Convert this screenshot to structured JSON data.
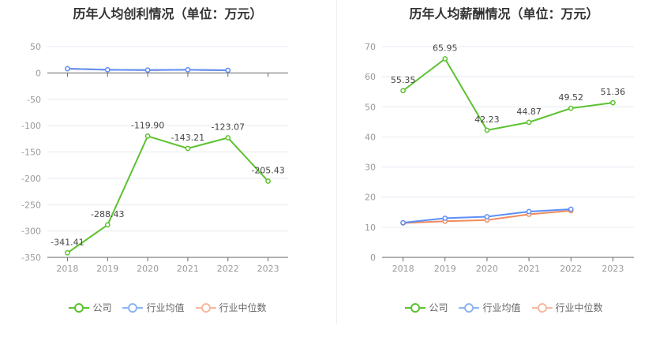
{
  "chart_data": [
    {
      "type": "line",
      "title": "历年人均创利情况（单位：万元）",
      "categories": [
        "2018",
        "2019",
        "2020",
        "2021",
        "2022",
        "2023"
      ],
      "ylim": [
        -350,
        50
      ],
      "yticks": [
        50,
        0,
        -50,
        -100,
        -150,
        -200,
        -250,
        -300,
        -350
      ],
      "grid": true,
      "legend_position": "bottom",
      "series": [
        {
          "name": "公司",
          "color": "#5cc22f",
          "values": [
            -341.41,
            -288.43,
            -119.9,
            -143.21,
            -123.07,
            -205.43
          ],
          "labels": [
            "-341.41",
            "-288.43",
            "-119.90",
            "-143.21",
            "-123.07",
            "-205.43"
          ]
        },
        {
          "name": "行业均值",
          "color": "#5b8ff9",
          "values": [
            8.0,
            6.0,
            5.5,
            6.0,
            5.0,
            null
          ]
        },
        {
          "name": "行业中位数",
          "color": "#f08b5e",
          "values": [
            8.0,
            6.0,
            5.5,
            6.0,
            5.0,
            null
          ]
        }
      ]
    },
    {
      "type": "line",
      "title": "历年人均薪酬情况（单位：万元）",
      "categories": [
        "2018",
        "2019",
        "2020",
        "2021",
        "2022",
        "2023"
      ],
      "ylim": [
        0,
        70
      ],
      "yticks": [
        70,
        60,
        50,
        40,
        30,
        20,
        10,
        0
      ],
      "grid": true,
      "legend_position": "bottom",
      "series": [
        {
          "name": "公司",
          "color": "#5cc22f",
          "values": [
            55.35,
            65.95,
            42.23,
            44.87,
            49.52,
            51.36
          ],
          "labels": [
            "55.35",
            "65.95",
            "42.23",
            "44.87",
            "49.52",
            "51.36"
          ]
        },
        {
          "name": "行业均值",
          "color": "#5b8ff9",
          "values": [
            11.5,
            13.0,
            13.5,
            15.2,
            16.0,
            null
          ]
        },
        {
          "name": "行业中位数",
          "color": "#f08b5e",
          "values": [
            11.4,
            12.0,
            12.4,
            14.3,
            15.5,
            null
          ]
        }
      ]
    }
  ],
  "legend": {
    "items": [
      {
        "label": "公司",
        "color": "#5cc22f"
      },
      {
        "label": "行业均值",
        "color": "#8fb4f5"
      },
      {
        "label": "行业中位数",
        "color": "#f5b8a0"
      }
    ]
  }
}
